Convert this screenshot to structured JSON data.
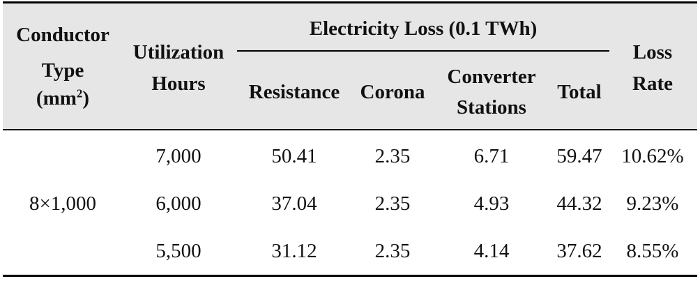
{
  "table": {
    "headers": {
      "conductor_type_line1": "Conductor",
      "conductor_type_line2": "Type",
      "conductor_type_unit_base": "(mm",
      "conductor_type_unit_sup": "2",
      "conductor_type_unit_end": ")",
      "utilization_line1": "Utilization",
      "utilization_line2": "Hours",
      "electricity_loss_group": "Electricity Loss (0.1 TWh)",
      "resistance": "Resistance",
      "corona": "Corona",
      "converter_line1": "Converter",
      "converter_line2": "Stations",
      "total": "Total",
      "loss_rate_line1": "Loss",
      "loss_rate_line2": "Rate"
    },
    "conductor_type": "8×1,000",
    "rows": [
      {
        "utilization_hours": "7,000",
        "resistance": "50.41",
        "corona": "2.35",
        "converter_stations": "6.71",
        "total": "59.47",
        "loss_rate": "10.62%"
      },
      {
        "utilization_hours": "6,000",
        "resistance": "37.04",
        "corona": "2.35",
        "converter_stations": "4.93",
        "total": "44.32",
        "loss_rate": "9.23%"
      },
      {
        "utilization_hours": "5,500",
        "resistance": "31.12",
        "corona": "2.35",
        "converter_stations": "4.14",
        "total": "37.62",
        "loss_rate": "8.55%"
      }
    ]
  }
}
